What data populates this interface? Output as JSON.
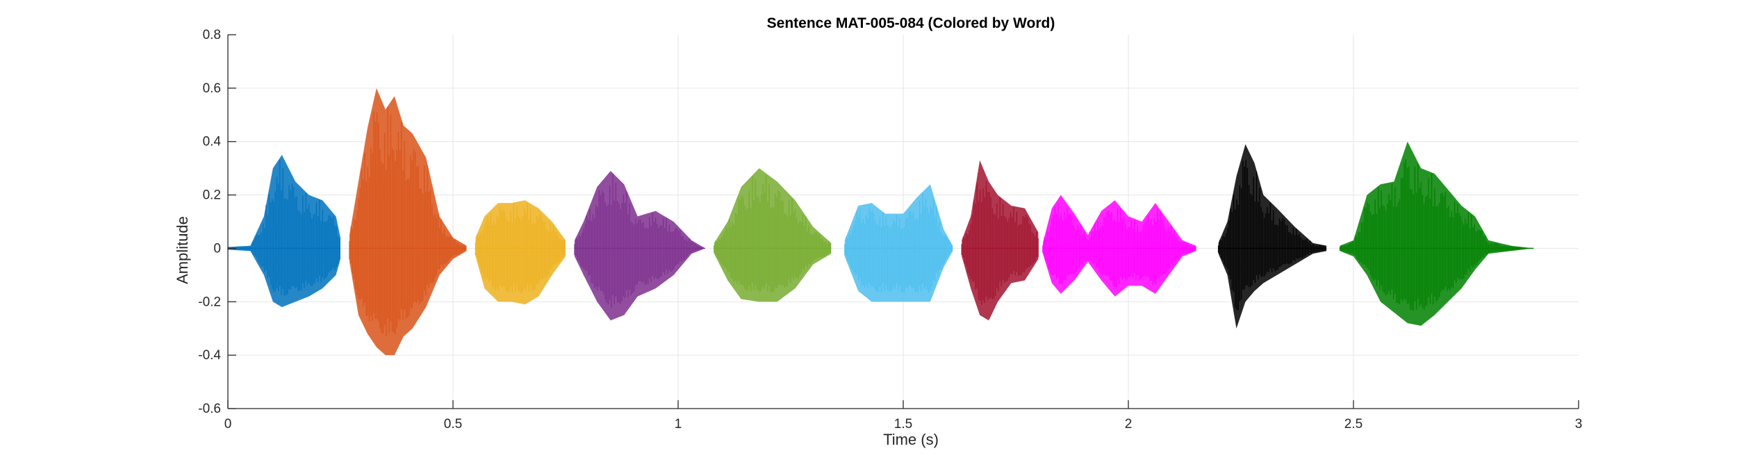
{
  "chart_data": {
    "type": "line",
    "title": "Sentence MAT-005-084 (Colored by Word)",
    "xlabel": "Time (s)",
    "ylabel": "Amplitude",
    "xlim": [
      0,
      3
    ],
    "ylim": [
      -0.6,
      0.8
    ],
    "xticks": [
      0,
      0.5,
      1,
      1.5,
      2,
      2.5,
      3
    ],
    "xtick_labels": [
      "0",
      "0.5",
      "1",
      "1.5",
      "2",
      "2.5",
      "3"
    ],
    "yticks": [
      -0.6,
      -0.4,
      -0.2,
      0,
      0.2,
      0.4,
      0.6,
      0.8
    ],
    "ytick_labels": [
      "-0.6",
      "-0.4",
      "-0.2",
      "0",
      "0.2",
      "0.4",
      "0.6",
      "0.8"
    ],
    "grid": true,
    "legend": "none",
    "series": [
      {
        "color": "#0072BD",
        "x": [
          0.0,
          0.05,
          0.08,
          0.1,
          0.12,
          0.15,
          0.18,
          0.21,
          0.24,
          0.25
        ],
        "ymax": [
          0.005,
          0.01,
          0.12,
          0.3,
          0.35,
          0.25,
          0.2,
          0.18,
          0.12,
          0.04
        ],
        "ymin": [
          -0.005,
          -0.01,
          -0.1,
          -0.2,
          -0.22,
          -0.2,
          -0.18,
          -0.15,
          -0.1,
          -0.04
        ]
      },
      {
        "color": "#D95319",
        "x": [
          0.27,
          0.29,
          0.31,
          0.33,
          0.35,
          0.37,
          0.39,
          0.41,
          0.44,
          0.47,
          0.5,
          0.53
        ],
        "ymax": [
          0.05,
          0.25,
          0.45,
          0.6,
          0.52,
          0.57,
          0.46,
          0.43,
          0.34,
          0.12,
          0.04,
          0.01
        ],
        "ymin": [
          -0.05,
          -0.25,
          -0.32,
          -0.37,
          -0.4,
          -0.4,
          -0.33,
          -0.3,
          -0.22,
          -0.1,
          -0.04,
          -0.01
        ]
      },
      {
        "color": "#EDB120",
        "x": [
          0.55,
          0.57,
          0.6,
          0.63,
          0.66,
          0.69,
          0.72,
          0.75
        ],
        "ymax": [
          0.04,
          0.12,
          0.17,
          0.17,
          0.18,
          0.15,
          0.1,
          0.03
        ],
        "ymin": [
          -0.03,
          -0.15,
          -0.2,
          -0.2,
          -0.21,
          -0.18,
          -0.1,
          -0.03
        ]
      },
      {
        "color": "#7E2F8E",
        "x": [
          0.77,
          0.79,
          0.82,
          0.85,
          0.88,
          0.91,
          0.95,
          0.99,
          1.03,
          1.06
        ],
        "ymax": [
          0.03,
          0.1,
          0.23,
          0.29,
          0.24,
          0.12,
          0.14,
          0.1,
          0.03,
          0.0
        ],
        "ymin": [
          -0.03,
          -0.1,
          -0.2,
          -0.27,
          -0.25,
          -0.18,
          -0.15,
          -0.1,
          -0.02,
          0.0
        ]
      },
      {
        "color": "#77AC30",
        "x": [
          1.08,
          1.11,
          1.14,
          1.18,
          1.22,
          1.26,
          1.3,
          1.34
        ],
        "ymax": [
          0.02,
          0.1,
          0.23,
          0.3,
          0.25,
          0.18,
          0.08,
          0.02
        ],
        "ymin": [
          -0.02,
          -0.12,
          -0.19,
          -0.2,
          -0.2,
          -0.15,
          -0.06,
          -0.02
        ]
      },
      {
        "color": "#4DBEEE",
        "x": [
          1.37,
          1.4,
          1.43,
          1.46,
          1.5,
          1.53,
          1.56,
          1.59,
          1.61
        ],
        "ymax": [
          0.03,
          0.16,
          0.17,
          0.13,
          0.13,
          0.19,
          0.24,
          0.07,
          0.01
        ],
        "ymin": [
          -0.03,
          -0.16,
          -0.2,
          -0.2,
          -0.2,
          -0.2,
          -0.2,
          -0.07,
          -0.01
        ]
      },
      {
        "color": "#A2142F",
        "x": [
          1.63,
          1.65,
          1.67,
          1.69,
          1.71,
          1.74,
          1.77,
          1.8
        ],
        "ymax": [
          0.03,
          0.12,
          0.33,
          0.25,
          0.2,
          0.16,
          0.15,
          0.06
        ],
        "ymin": [
          -0.03,
          -0.15,
          -0.25,
          -0.27,
          -0.2,
          -0.13,
          -0.12,
          -0.04
        ]
      },
      {
        "color": "#FF00FF",
        "x": [
          1.81,
          1.83,
          1.85,
          1.88,
          1.91,
          1.94,
          1.97,
          2.0,
          2.03,
          2.06,
          2.09,
          2.12,
          2.15
        ],
        "ymax": [
          0.02,
          0.15,
          0.2,
          0.13,
          0.05,
          0.14,
          0.18,
          0.12,
          0.1,
          0.17,
          0.1,
          0.03,
          0.01
        ],
        "ymin": [
          -0.02,
          -0.13,
          -0.17,
          -0.12,
          -0.05,
          -0.12,
          -0.18,
          -0.14,
          -0.14,
          -0.17,
          -0.1,
          -0.03,
          -0.01
        ]
      },
      {
        "color": "#000000",
        "x": [
          2.2,
          2.22,
          2.24,
          2.26,
          2.28,
          2.3,
          2.33,
          2.37,
          2.41,
          2.44
        ],
        "ymax": [
          0.02,
          0.1,
          0.27,
          0.39,
          0.32,
          0.2,
          0.15,
          0.08,
          0.02,
          0.01
        ],
        "ymin": [
          -0.02,
          -0.1,
          -0.3,
          -0.2,
          -0.16,
          -0.13,
          -0.1,
          -0.06,
          -0.02,
          -0.01
        ]
      },
      {
        "color": "#008000",
        "x": [
          2.47,
          2.5,
          2.53,
          2.56,
          2.59,
          2.62,
          2.65,
          2.68,
          2.71,
          2.74,
          2.77,
          2.8,
          2.85,
          2.9
        ],
        "ymax": [
          0.01,
          0.03,
          0.2,
          0.24,
          0.25,
          0.4,
          0.3,
          0.28,
          0.22,
          0.16,
          0.12,
          0.03,
          0.01,
          0.0
        ],
        "ymin": [
          -0.01,
          -0.03,
          -0.1,
          -0.2,
          -0.24,
          -0.28,
          -0.29,
          -0.25,
          -0.2,
          -0.15,
          -0.08,
          -0.02,
          -0.01,
          0.0
        ]
      }
    ]
  }
}
